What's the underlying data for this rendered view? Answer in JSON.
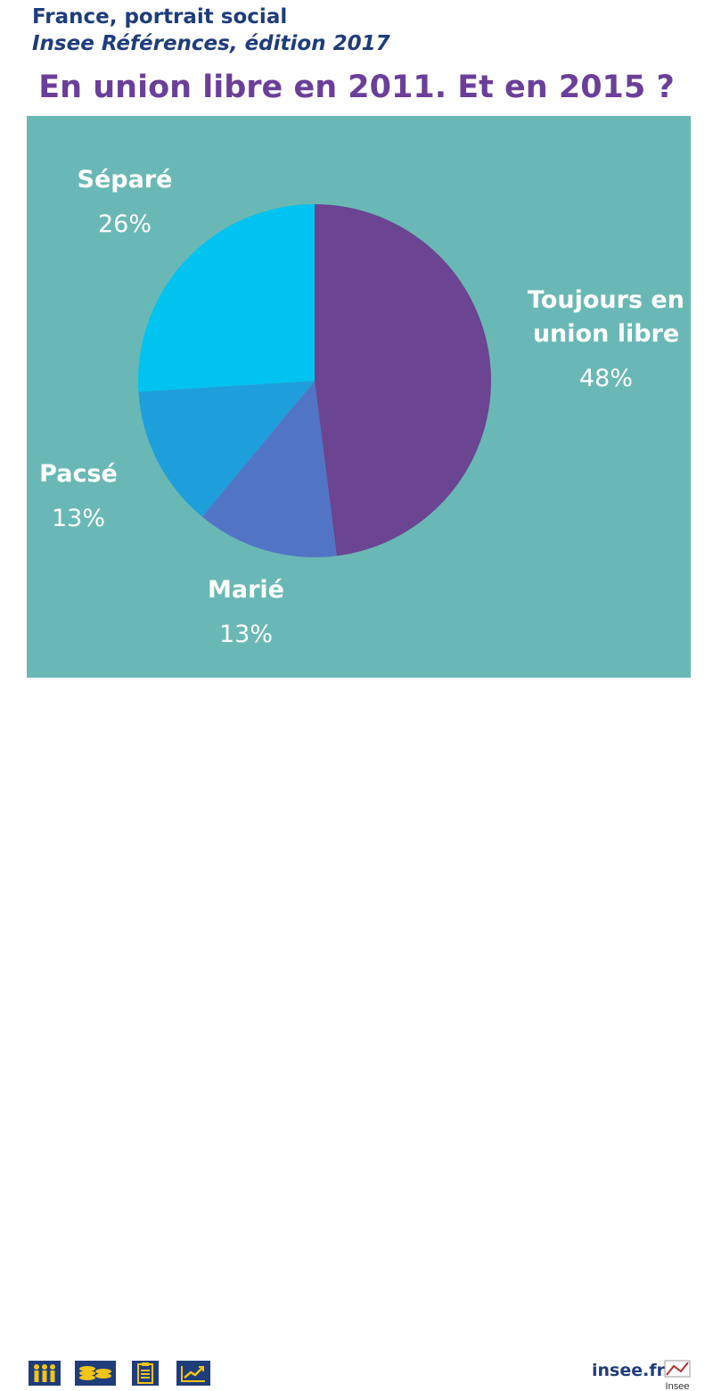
{
  "header": {
    "line1": "France, portrait social",
    "line2": "Insee Références, édition 2017"
  },
  "chart_data": {
    "type": "pie",
    "title": "En union libre en 2011. Et en 2015 ?",
    "slices": [
      {
        "label_lines": [
          "Toujours en",
          "union libre"
        ],
        "value": 48,
        "value_label": "48%",
        "color": "#6b4492"
      },
      {
        "label_lines": [
          "Marié"
        ],
        "value": 13,
        "value_label": "13%",
        "color": "#5175c4"
      },
      {
        "label_lines": [
          "Pacsé"
        ],
        "value": 13,
        "value_label": "13%",
        "color": "#1e9fdb"
      },
      {
        "label_lines": [
          "Séparé"
        ],
        "value": 26,
        "value_label": "26%",
        "color": "#00c3ef"
      }
    ]
  },
  "colors": {
    "panel_background": "#6ab8b5",
    "title_color": "#6b3f99",
    "header_color": "#1f3d7a",
    "icon_color": "#f0c419",
    "icon_background": "#1f3d7a"
  },
  "footer": {
    "icons": [
      "people-icon",
      "coins-icon",
      "clipboard-icon",
      "chart-trend-icon"
    ],
    "site": "insee.fr",
    "logo_text": "Insee"
  }
}
